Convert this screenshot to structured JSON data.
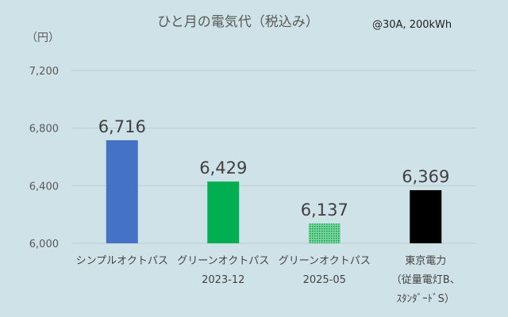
{
  "chart_data": {
    "type": "bar",
    "title": "ひと月の電気代（税込み）",
    "note": "@30A, 200kWh",
    "ylabel": "（円）",
    "ylim": [
      6000,
      7200
    ],
    "yticks": [
      6000,
      6400,
      6800,
      7200
    ],
    "ytick_labels": [
      "6,000",
      "6,400",
      "6,800",
      "7,200"
    ],
    "grid": true,
    "legend": "none",
    "categories": [
      [
        "シンプルオクトパス"
      ],
      [
        "グリーンオクトパス",
        "2023-12"
      ],
      [
        "グリーンオクトパス",
        "2025-05"
      ],
      [
        "東京電力",
        "（従量電灯B、",
        "ｽﾀﾝﾀﾞｰﾄﾞS）"
      ]
    ],
    "values": [
      6716,
      6429,
      6137,
      6369
    ],
    "value_labels": [
      "6,716",
      "6,429",
      "6,137",
      "6,369"
    ],
    "colors": [
      "#4472c4",
      "#00b050",
      "#00b050",
      "#000000"
    ],
    "patterns": [
      "solid",
      "solid",
      "dotted",
      "solid"
    ]
  }
}
